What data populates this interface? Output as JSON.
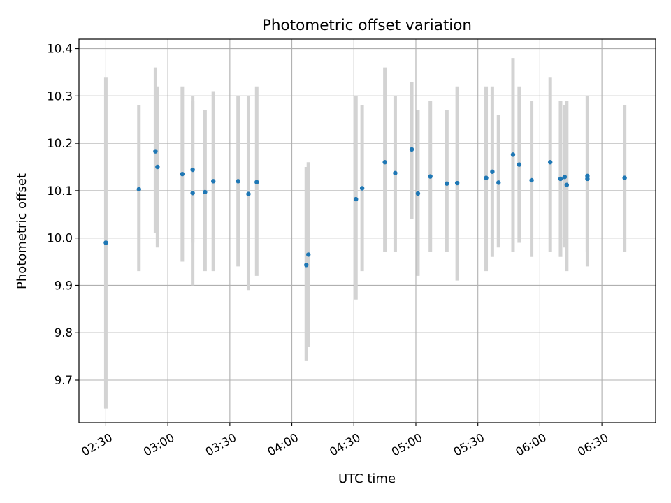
{
  "chart_data": {
    "type": "scatter",
    "title": "Photometric offset variation",
    "xlabel": "UTC time",
    "ylabel": "Photometric offset",
    "x_tick_labels": [
      "02:30",
      "03:00",
      "03:30",
      "04:00",
      "04:30",
      "05:00",
      "05:30",
      "06:00",
      "06:30"
    ],
    "y_tick_labels": [
      "9.7",
      "9.8",
      "9.9",
      "10.0",
      "10.1",
      "10.2",
      "10.3",
      "10.4"
    ],
    "y_ticks": [
      9.7,
      9.8,
      9.9,
      10.0,
      10.1,
      10.2,
      10.3,
      10.4
    ],
    "xlim": [
      "02:17",
      "06:56"
    ],
    "ylim": [
      9.61,
      10.42
    ],
    "grid": true,
    "colors": {
      "point": "#1f77b4",
      "error_bar": "#d3d3d3",
      "grid": "#b0b0b0"
    },
    "points": [
      {
        "x": "02:30",
        "y": 9.99,
        "ylow": 9.64,
        "yhigh": 10.34
      },
      {
        "x": "02:46",
        "y": 10.103,
        "ylow": 9.93,
        "yhigh": 10.28
      },
      {
        "x": "02:54",
        "y": 10.183,
        "ylow": 10.01,
        "yhigh": 10.36
      },
      {
        "x": "02:55",
        "y": 10.15,
        "ylow": 9.98,
        "yhigh": 10.32
      },
      {
        "x": "03:07",
        "y": 10.135,
        "ylow": 9.95,
        "yhigh": 10.32
      },
      {
        "x": "03:12",
        "y": 10.144,
        "ylow": 9.99,
        "yhigh": 10.3
      },
      {
        "x": "03:12",
        "y": 10.095,
        "ylow": 9.9,
        "yhigh": 10.29
      },
      {
        "x": "03:18",
        "y": 10.097,
        "ylow": 9.93,
        "yhigh": 10.27
      },
      {
        "x": "03:22",
        "y": 10.12,
        "ylow": 9.93,
        "yhigh": 10.31
      },
      {
        "x": "03:34",
        "y": 10.12,
        "ylow": 9.94,
        "yhigh": 10.3
      },
      {
        "x": "03:39",
        "y": 10.093,
        "ylow": 9.89,
        "yhigh": 10.3
      },
      {
        "x": "03:43",
        "y": 10.118,
        "ylow": 9.92,
        "yhigh": 10.32
      },
      {
        "x": "04:07",
        "y": 9.943,
        "ylow": 9.74,
        "yhigh": 10.15
      },
      {
        "x": "04:08",
        "y": 9.965,
        "ylow": 9.77,
        "yhigh": 10.16
      },
      {
        "x": "04:31",
        "y": 10.082,
        "ylow": 9.87,
        "yhigh": 10.3
      },
      {
        "x": "04:34",
        "y": 10.105,
        "ylow": 9.93,
        "yhigh": 10.28
      },
      {
        "x": "04:45",
        "y": 10.16,
        "ylow": 9.97,
        "yhigh": 10.36
      },
      {
        "x": "04:50",
        "y": 10.137,
        "ylow": 9.97,
        "yhigh": 10.3
      },
      {
        "x": "04:58",
        "y": 10.187,
        "ylow": 10.04,
        "yhigh": 10.33
      },
      {
        "x": "05:01",
        "y": 10.094,
        "ylow": 9.92,
        "yhigh": 10.27
      },
      {
        "x": "05:07",
        "y": 10.13,
        "ylow": 9.97,
        "yhigh": 10.29
      },
      {
        "x": "05:15",
        "y": 10.115,
        "ylow": 9.97,
        "yhigh": 10.27
      },
      {
        "x": "05:20",
        "y": 10.116,
        "ylow": 9.91,
        "yhigh": 10.32
      },
      {
        "x": "05:34",
        "y": 10.127,
        "ylow": 9.93,
        "yhigh": 10.32
      },
      {
        "x": "05:37",
        "y": 10.14,
        "ylow": 9.96,
        "yhigh": 10.32
      },
      {
        "x": "05:40",
        "y": 10.117,
        "ylow": 9.98,
        "yhigh": 10.26
      },
      {
        "x": "05:47",
        "y": 10.176,
        "ylow": 9.97,
        "yhigh": 10.38
      },
      {
        "x": "05:50",
        "y": 10.155,
        "ylow": 9.99,
        "yhigh": 10.32
      },
      {
        "x": "05:56",
        "y": 10.122,
        "ylow": 9.96,
        "yhigh": 10.29
      },
      {
        "x": "06:05",
        "y": 10.16,
        "ylow": 9.97,
        "yhigh": 10.34
      },
      {
        "x": "06:10",
        "y": 10.125,
        "ylow": 9.96,
        "yhigh": 10.29
      },
      {
        "x": "06:12",
        "y": 10.129,
        "ylow": 9.98,
        "yhigh": 10.28
      },
      {
        "x": "06:13",
        "y": 10.112,
        "ylow": 9.93,
        "yhigh": 10.29
      },
      {
        "x": "06:23",
        "y": 10.131,
        "ylow": 9.97,
        "yhigh": 10.3
      },
      {
        "x": "06:23",
        "y": 10.125,
        "ylow": 9.94,
        "yhigh": 10.3
      },
      {
        "x": "06:41",
        "y": 10.127,
        "ylow": 9.97,
        "yhigh": 10.28
      }
    ]
  }
}
